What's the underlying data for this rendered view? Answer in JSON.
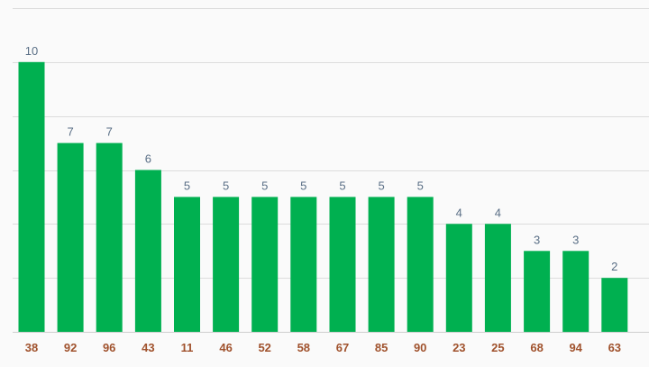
{
  "chart_data": {
    "type": "bar",
    "categories": [
      "38",
      "92",
      "96",
      "43",
      "11",
      "46",
      "52",
      "58",
      "67",
      "85",
      "90",
      "23",
      "25",
      "68",
      "94",
      "63"
    ],
    "values": [
      10,
      7,
      7,
      6,
      5,
      5,
      5,
      5,
      5,
      5,
      5,
      4,
      4,
      3,
      3,
      2
    ],
    "ylim": [
      0,
      12
    ],
    "grid": true,
    "legend": "none",
    "show_value_labels": true,
    "y_tick_labels_visible": false
  },
  "colors": {
    "bar": "#00b050",
    "value_label": "#5a6f86",
    "tick_label": "#a0522d",
    "grid": "#dcdcdc",
    "background": "#fafafa"
  }
}
